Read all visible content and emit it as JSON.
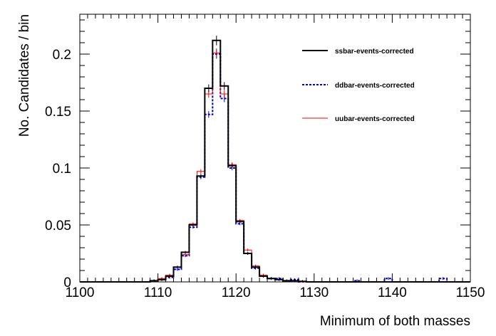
{
  "chart_data": {
    "type": "line",
    "xlabel": "Minimum of both masses",
    "ylabel": "No. Candidates / bin",
    "xlim": [
      1100,
      1150
    ],
    "ylim": [
      0,
      0.235
    ],
    "x_ticks": [
      "1100",
      "1110",
      "1120",
      "1130",
      "1140",
      "1150"
    ],
    "y_ticks": [
      "0",
      "0.05",
      "0.1",
      "0.15",
      "0.2"
    ],
    "legend_position": "top-right",
    "x": [
      1100,
      1101,
      1102,
      1103,
      1104,
      1105,
      1106,
      1107,
      1108,
      1109,
      1110,
      1111,
      1112,
      1113,
      1114,
      1115,
      1116,
      1117,
      1118,
      1119,
      1120,
      1121,
      1122,
      1123,
      1124,
      1125,
      1126,
      1127,
      1128,
      1129,
      1130,
      1131,
      1132,
      1133,
      1134,
      1135,
      1136,
      1137,
      1138,
      1139,
      1140,
      1141,
      1142,
      1143,
      1144,
      1145,
      1146,
      1147,
      1148,
      1149,
      1150
    ],
    "series": [
      {
        "name": "ssbar-events-corrected",
        "color": "#000000",
        "style": "solid",
        "values": [
          0,
          0,
          0,
          0,
          0,
          0,
          0,
          0,
          0,
          0.001,
          0.002,
          0.005,
          0.013,
          0.026,
          0.05,
          0.093,
          0.17,
          0.212,
          0.172,
          0.102,
          0.053,
          0.025,
          0.013,
          0.005,
          0.003,
          0.002,
          0.001,
          0.001,
          0.0005,
          0,
          0,
          0,
          0,
          0,
          0,
          0,
          0,
          0,
          0,
          0,
          0,
          0,
          0,
          0,
          0,
          0,
          0,
          0,
          0,
          0,
          0
        ]
      },
      {
        "name": "ddbar-events-corrected",
        "color": "#0000cc",
        "style": "dashed",
        "values": [
          0,
          0,
          0,
          0,
          0,
          0,
          0,
          0,
          0,
          0.001,
          0.002,
          0.004,
          0.011,
          0.023,
          0.048,
          0.092,
          0.147,
          0.2,
          0.161,
          0.1,
          0.051,
          0.025,
          0.012,
          0.005,
          0.003,
          0.003,
          0.001,
          0.002,
          0,
          0,
          0,
          0,
          0,
          0,
          0,
          0.001,
          0,
          0,
          0,
          0.003,
          0,
          0,
          0,
          0,
          0,
          0,
          0.003,
          0,
          0,
          0,
          0
        ]
      },
      {
        "name": "uubar-events-corrected",
        "color": "#ff0000",
        "style": "solid",
        "values": [
          0,
          0,
          0,
          0,
          0,
          0,
          0,
          0,
          0,
          0.001,
          0.003,
          0.006,
          0.013,
          0.024,
          0.051,
          0.097,
          0.165,
          0.201,
          0.165,
          0.103,
          0.054,
          0.028,
          0.014,
          0.006,
          0.003,
          0.002,
          0.001,
          0.001,
          0,
          0,
          0,
          0,
          0,
          0,
          0,
          0,
          0,
          0,
          0,
          0,
          0,
          0,
          0,
          0,
          0,
          0,
          0,
          0,
          0,
          0,
          0
        ]
      }
    ],
    "x_ticks_note": null
  }
}
